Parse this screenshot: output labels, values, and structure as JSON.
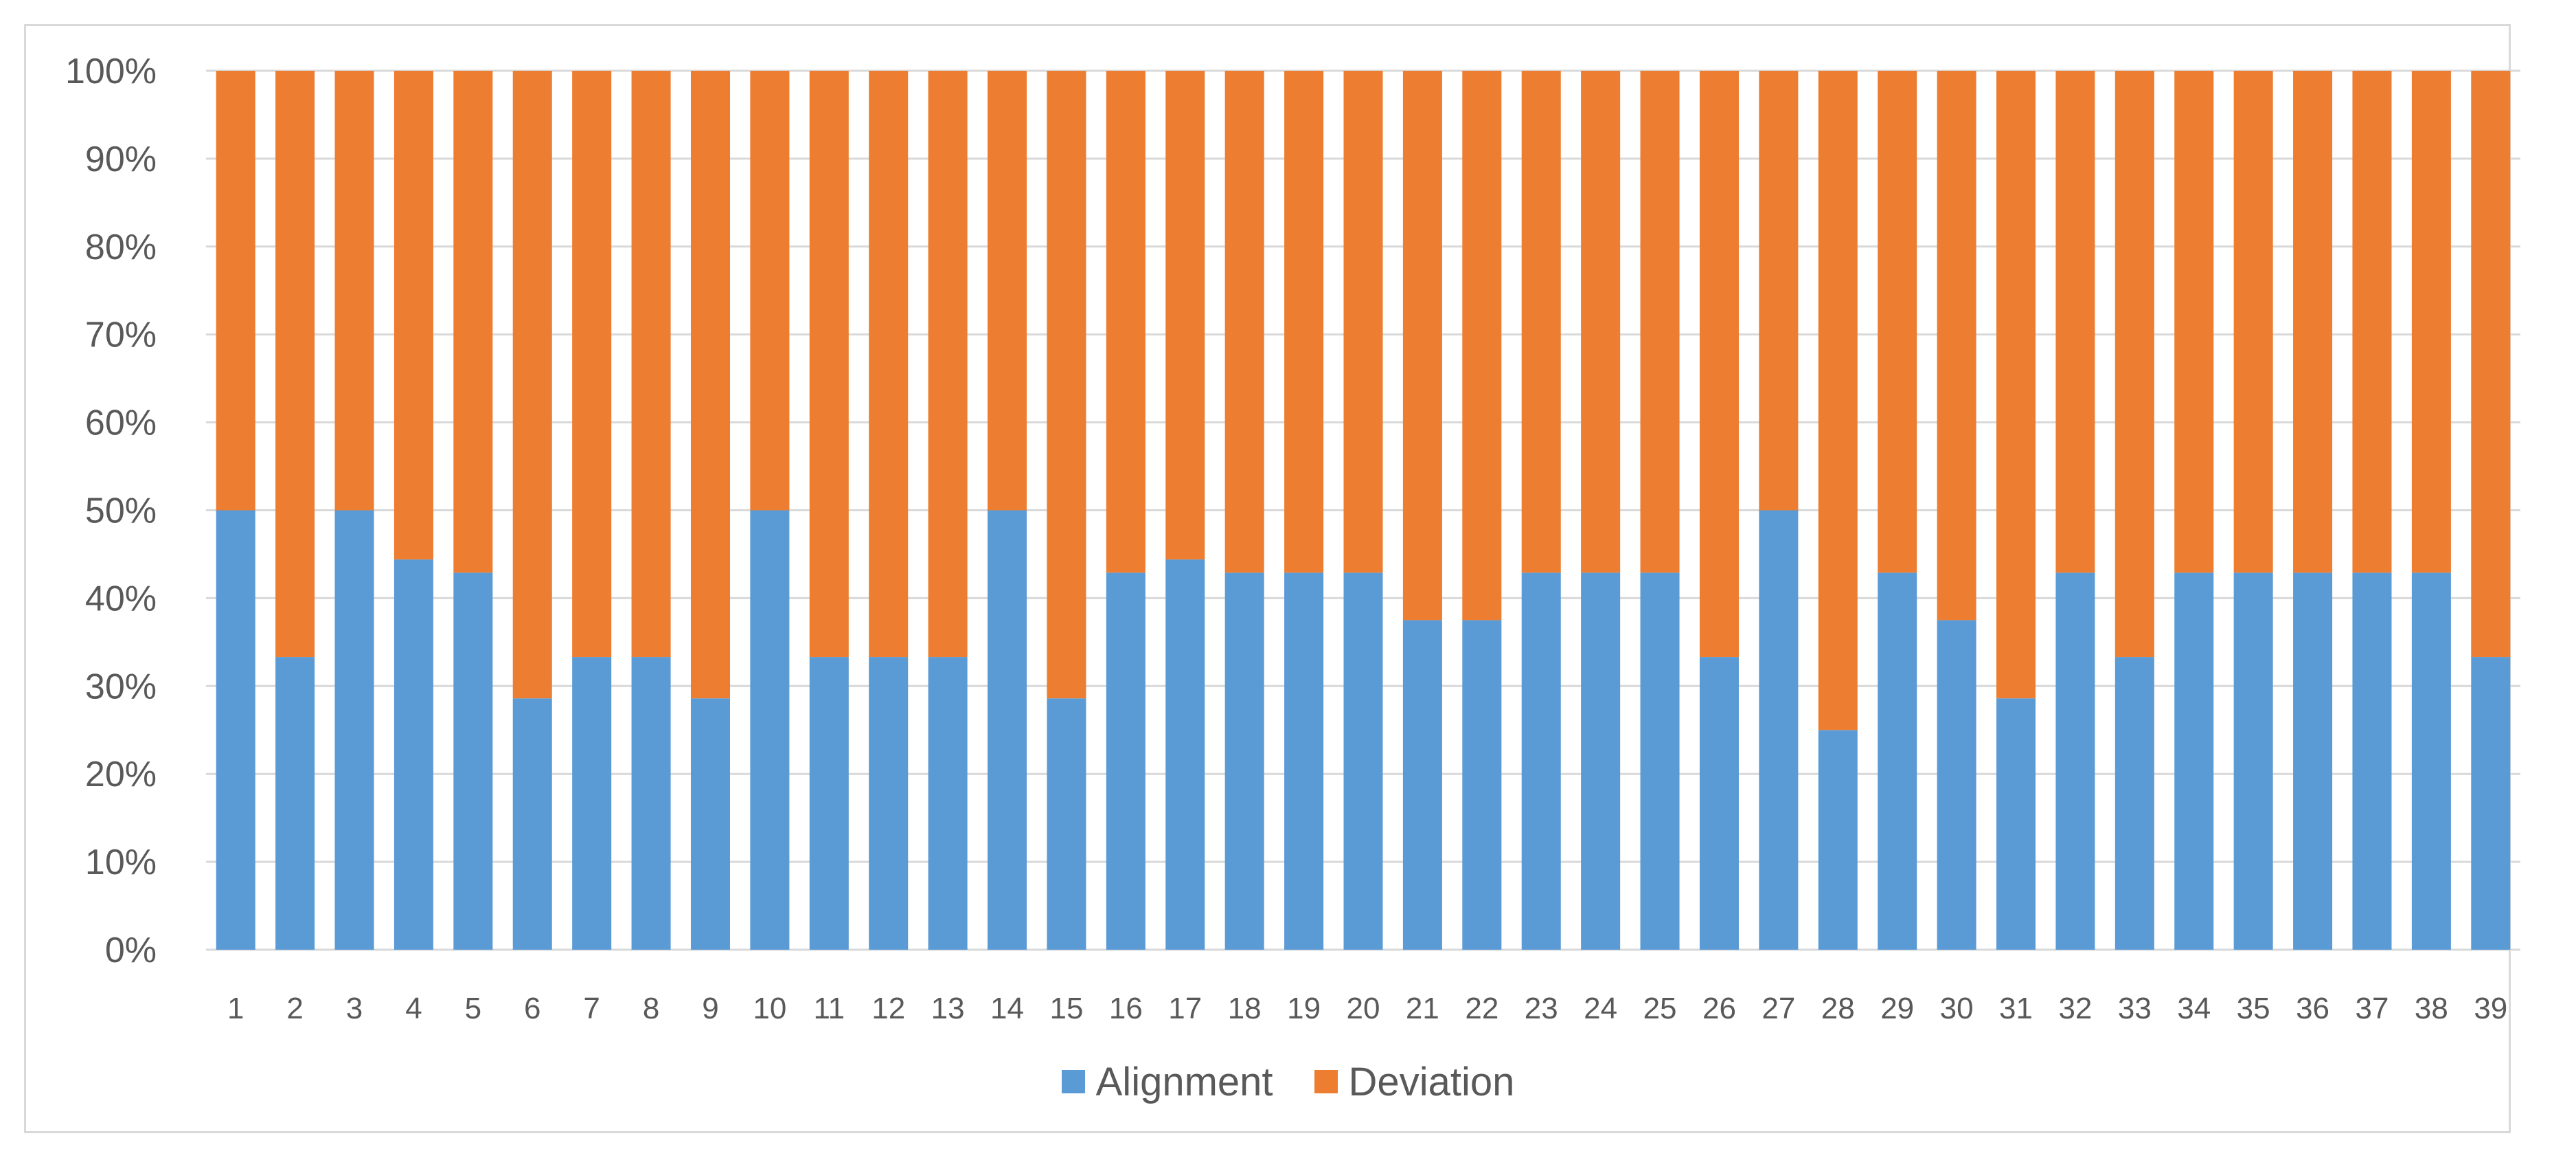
{
  "chart_data": {
    "type": "bar",
    "stacked": true,
    "percent_stacked": true,
    "categories": [
      "1",
      "2",
      "3",
      "4",
      "5",
      "6",
      "7",
      "8",
      "9",
      "10",
      "11",
      "12",
      "13",
      "14",
      "15",
      "16",
      "17",
      "18",
      "19",
      "20",
      "21",
      "22",
      "23",
      "24",
      "25",
      "26",
      "27",
      "28",
      "29",
      "30",
      "31",
      "32",
      "33",
      "34",
      "35",
      "36",
      "37",
      "38",
      "39"
    ],
    "series": [
      {
        "name": "Alignment",
        "color": "#5b9bd5",
        "values": [
          50,
          33.3,
          50,
          44.4,
          42.9,
          28.6,
          33.3,
          33.3,
          28.6,
          50,
          33.3,
          33.3,
          33.3,
          50,
          28.6,
          42.9,
          44.4,
          42.9,
          42.9,
          42.9,
          37.5,
          37.5,
          42.9,
          42.9,
          42.9,
          33.3,
          50,
          25,
          42.9,
          37.5,
          28.6,
          42.9,
          33.3,
          42.9,
          42.9,
          42.9,
          42.9,
          42.9,
          33.3
        ]
      },
      {
        "name": "Deviation",
        "color": "#ed7d31",
        "values": [
          50,
          66.7,
          50,
          55.6,
          57.1,
          71.4,
          66.7,
          66.7,
          71.4,
          50,
          66.7,
          66.7,
          66.7,
          50,
          71.4,
          57.1,
          55.6,
          57.1,
          57.1,
          57.1,
          62.5,
          62.5,
          57.1,
          57.1,
          57.1,
          66.7,
          50,
          75,
          57.1,
          62.5,
          71.4,
          57.1,
          66.7,
          57.1,
          57.1,
          57.1,
          57.1,
          57.1,
          66.7
        ]
      }
    ],
    "ylim": [
      0,
      100
    ],
    "yticks": [
      "0%",
      "10%",
      "20%",
      "30%",
      "40%",
      "50%",
      "60%",
      "70%",
      "80%",
      "90%",
      "100%"
    ],
    "grid": true,
    "legend_position": "bottom",
    "title": "",
    "xlabel": "",
    "ylabel": ""
  }
}
